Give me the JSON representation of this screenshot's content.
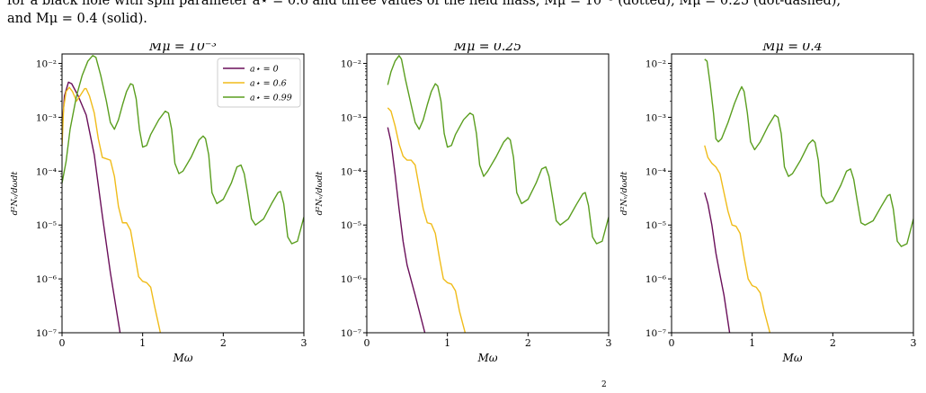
{
  "caption": {
    "line1": "for a black hole with spin parameter a⋆ = 0.6 and three values of the field mass, Mμ = 10⁻³ (dotted), Mμ = 0.25 (dot-dashed),",
    "line2": "and Mμ = 0.4 (solid)."
  },
  "footer_mark": "2",
  "colors": {
    "a0": "#6a0f5a",
    "a06": "#f0bc1a",
    "a099": "#5a9e1f"
  },
  "chart_data": [
    {
      "type": "line",
      "title": "Mμ = 10⁻³",
      "xlabel": "Mω",
      "ylabel": "d²Nᵥ/dωdt",
      "xlim": [
        0,
        3
      ],
      "ylim": [
        1e-07,
        0.015
      ],
      "yscale": "log",
      "xticks": [
        "0",
        "1",
        "2",
        "3"
      ],
      "yticks": [
        "10⁻⁷",
        "10⁻⁶",
        "10⁻⁵",
        "10⁻⁴",
        "10⁻³",
        "10⁻²"
      ],
      "legend": {
        "placement": "top-right",
        "entries": [
          "a⋆ = 0",
          "a⋆ = 0.6",
          "a⋆ = 0.99"
        ]
      },
      "series": [
        {
          "name": "a⋆ = 0",
          "color": "#6a0f5a",
          "points": [
            [
              0.0,
              0.0006
            ],
            [
              0.03,
              0.0025
            ],
            [
              0.08,
              0.0045
            ],
            [
              0.12,
              0.0042
            ],
            [
              0.2,
              0.0025
            ],
            [
              0.3,
              0.0011
            ],
            [
              0.4,
              0.0002
            ],
            [
              0.5,
              1.5e-05
            ],
            [
              0.6,
              1.3e-06
            ],
            [
              0.72,
              1e-07
            ]
          ]
        },
        {
          "name": "a⋆ = 0.6",
          "color": "#f0bc1a",
          "points": [
            [
              0.0,
              0.0003
            ],
            [
              0.02,
              0.0015
            ],
            [
              0.05,
              0.003
            ],
            [
              0.09,
              0.0036
            ],
            [
              0.13,
              0.003
            ],
            [
              0.18,
              0.002
            ],
            [
              0.23,
              0.0026
            ],
            [
              0.28,
              0.0034
            ],
            [
              0.3,
              0.0034
            ],
            [
              0.34,
              0.0025
            ],
            [
              0.4,
              0.0012
            ],
            [
              0.45,
              0.0004
            ],
            [
              0.5,
              0.00018
            ],
            [
              0.55,
              0.00017
            ],
            [
              0.6,
              0.00016
            ],
            [
              0.65,
              8e-05
            ],
            [
              0.7,
              2.2e-05
            ],
            [
              0.75,
              1.1e-05
            ],
            [
              0.8,
              1.1e-05
            ],
            [
              0.85,
              8e-06
            ],
            [
              0.9,
              3e-06
            ],
            [
              0.95,
              1.1e-06
            ],
            [
              1.0,
              9e-07
            ],
            [
              1.05,
              8.5e-07
            ],
            [
              1.1,
              7e-07
            ],
            [
              1.15,
              3e-07
            ],
            [
              1.22,
              1e-07
            ]
          ]
        },
        {
          "name": "a⋆ = 0.99",
          "color": "#5a9e1f",
          "points": [
            [
              0.0,
              6e-05
            ],
            [
              0.05,
              0.00015
            ],
            [
              0.1,
              0.0006
            ],
            [
              0.18,
              0.0025
            ],
            [
              0.25,
              0.006
            ],
            [
              0.32,
              0.011
            ],
            [
              0.38,
              0.014
            ],
            [
              0.42,
              0.013
            ],
            [
              0.48,
              0.006
            ],
            [
              0.55,
              0.002
            ],
            [
              0.6,
              0.0008
            ],
            [
              0.65,
              0.0006
            ],
            [
              0.7,
              0.0009
            ],
            [
              0.75,
              0.0017
            ],
            [
              0.8,
              0.003
            ],
            [
              0.85,
              0.0042
            ],
            [
              0.88,
              0.004
            ],
            [
              0.92,
              0.0022
            ],
            [
              0.96,
              0.0006
            ],
            [
              1.0,
              0.00028
            ],
            [
              1.05,
              0.0003
            ],
            [
              1.1,
              0.00048
            ],
            [
              1.2,
              0.0009
            ],
            [
              1.28,
              0.0013
            ],
            [
              1.32,
              0.0012
            ],
            [
              1.36,
              0.0006
            ],
            [
              1.4,
              0.00014
            ],
            [
              1.45,
              9e-05
            ],
            [
              1.5,
              0.0001
            ],
            [
              1.6,
              0.00018
            ],
            [
              1.7,
              0.00038
            ],
            [
              1.75,
              0.00045
            ],
            [
              1.78,
              0.0004
            ],
            [
              1.82,
              0.0002
            ],
            [
              1.86,
              4e-05
            ],
            [
              1.92,
              2.5e-05
            ],
            [
              2.0,
              3e-05
            ],
            [
              2.1,
              6e-05
            ],
            [
              2.17,
              0.00012
            ],
            [
              2.22,
              0.00013
            ],
            [
              2.26,
              9e-05
            ],
            [
              2.3,
              4e-05
            ],
            [
              2.35,
              1.3e-05
            ],
            [
              2.4,
              1e-05
            ],
            [
              2.5,
              1.3e-05
            ],
            [
              2.6,
              2.5e-05
            ],
            [
              2.68,
              4e-05
            ],
            [
              2.71,
              4.2e-05
            ],
            [
              2.75,
              2.5e-05
            ],
            [
              2.8,
              6e-06
            ],
            [
              2.85,
              4.5e-06
            ],
            [
              2.92,
              5e-06
            ],
            [
              3.0,
              1.4e-05
            ]
          ]
        }
      ]
    },
    {
      "type": "line",
      "title": "Mμ = 0.25",
      "xlabel": "Mω",
      "ylabel": "d²Nᵥ/dωdt",
      "xlim": [
        0,
        3
      ],
      "ylim": [
        1e-07,
        0.015
      ],
      "yscale": "log",
      "xticks": [
        "0",
        "1",
        "2",
        "3"
      ],
      "yticks": [
        "10⁻⁷",
        "10⁻⁶",
        "10⁻⁵",
        "10⁻⁴",
        "10⁻³",
        "10⁻²"
      ],
      "series": [
        {
          "color": "#6a0f5a",
          "points": [
            [
              0.26,
              0.00065
            ],
            [
              0.3,
              0.00035
            ],
            [
              0.35,
              9e-05
            ],
            [
              0.4,
              2e-05
            ],
            [
              0.45,
              5e-06
            ],
            [
              0.5,
              1.8e-06
            ],
            [
              0.6,
              5e-07
            ],
            [
              0.72,
              1e-07
            ]
          ]
        },
        {
          "color": "#f0bc1a",
          "points": [
            [
              0.26,
              0.0015
            ],
            [
              0.3,
              0.0013
            ],
            [
              0.35,
              0.0007
            ],
            [
              0.4,
              0.00032
            ],
            [
              0.45,
              0.00019
            ],
            [
              0.5,
              0.00016
            ],
            [
              0.55,
              0.00016
            ],
            [
              0.6,
              0.00013
            ],
            [
              0.65,
              5e-05
            ],
            [
              0.7,
              2e-05
            ],
            [
              0.75,
              1.1e-05
            ],
            [
              0.8,
              1.05e-05
            ],
            [
              0.85,
              7e-06
            ],
            [
              0.9,
              2.5e-06
            ],
            [
              0.95,
              1e-06
            ],
            [
              1.0,
              8.5e-07
            ],
            [
              1.05,
              8e-07
            ],
            [
              1.1,
              6e-07
            ],
            [
              1.15,
              2.5e-07
            ],
            [
              1.22,
              1e-07
            ]
          ]
        },
        {
          "color": "#5a9e1f",
          "points": [
            [
              0.26,
              0.004
            ],
            [
              0.3,
              0.007
            ],
            [
              0.35,
              0.011
            ],
            [
              0.4,
              0.014
            ],
            [
              0.43,
              0.012
            ],
            [
              0.48,
              0.005
            ],
            [
              0.55,
              0.0017
            ],
            [
              0.6,
              0.0008
            ],
            [
              0.65,
              0.0006
            ],
            [
              0.7,
              0.0009
            ],
            [
              0.75,
              0.0017
            ],
            [
              0.8,
              0.003
            ],
            [
              0.85,
              0.0042
            ],
            [
              0.88,
              0.0038
            ],
            [
              0.92,
              0.002
            ],
            [
              0.96,
              0.0005
            ],
            [
              1.0,
              0.00028
            ],
            [
              1.05,
              0.0003
            ],
            [
              1.1,
              0.00048
            ],
            [
              1.2,
              0.0009
            ],
            [
              1.28,
              0.0012
            ],
            [
              1.32,
              0.0011
            ],
            [
              1.36,
              0.0005
            ],
            [
              1.4,
              0.00013
            ],
            [
              1.45,
              8e-05
            ],
            [
              1.5,
              0.0001
            ],
            [
              1.6,
              0.00018
            ],
            [
              1.7,
              0.00035
            ],
            [
              1.75,
              0.00042
            ],
            [
              1.78,
              0.00038
            ],
            [
              1.82,
              0.00018
            ],
            [
              1.86,
              4e-05
            ],
            [
              1.92,
              2.5e-05
            ],
            [
              2.0,
              3e-05
            ],
            [
              2.1,
              6e-05
            ],
            [
              2.17,
              0.00011
            ],
            [
              2.22,
              0.00012
            ],
            [
              2.26,
              8e-05
            ],
            [
              2.3,
              3.5e-05
            ],
            [
              2.35,
              1.2e-05
            ],
            [
              2.4,
              1e-05
            ],
            [
              2.5,
              1.3e-05
            ],
            [
              2.6,
              2.4e-05
            ],
            [
              2.68,
              3.8e-05
            ],
            [
              2.71,
              4e-05
            ],
            [
              2.75,
              2.3e-05
            ],
            [
              2.8,
              6e-06
            ],
            [
              2.85,
              4.5e-06
            ],
            [
              2.92,
              5e-06
            ],
            [
              3.0,
              1.4e-05
            ]
          ]
        }
      ]
    },
    {
      "type": "line",
      "title": "Mμ = 0.4",
      "xlabel": "Mω",
      "ylabel": "d²Nᵥ/dωdt",
      "xlim": [
        0,
        3
      ],
      "ylim": [
        1e-07,
        0.015
      ],
      "yscale": "log",
      "xticks": [
        "0",
        "1",
        "2",
        "3"
      ],
      "yticks": [
        "10⁻⁷",
        "10⁻⁶",
        "10⁻⁵",
        "10⁻⁴",
        "10⁻³",
        "10⁻²"
      ],
      "series": [
        {
          "color": "#6a0f5a",
          "points": [
            [
              0.41,
              4e-05
            ],
            [
              0.45,
              2.5e-05
            ],
            [
              0.5,
              1e-05
            ],
            [
              0.55,
              3e-06
            ],
            [
              0.6,
              1.2e-06
            ],
            [
              0.65,
              5e-07
            ],
            [
              0.72,
              1e-07
            ]
          ]
        },
        {
          "color": "#f0bc1a",
          "points": [
            [
              0.41,
              0.0003
            ],
            [
              0.45,
              0.00018
            ],
            [
              0.5,
              0.00014
            ],
            [
              0.55,
              0.00012
            ],
            [
              0.6,
              9e-05
            ],
            [
              0.65,
              4e-05
            ],
            [
              0.7,
              1.8e-05
            ],
            [
              0.75,
              1e-05
            ],
            [
              0.8,
              9.5e-06
            ],
            [
              0.85,
              7e-06
            ],
            [
              0.9,
              2.5e-06
            ],
            [
              0.95,
              1e-06
            ],
            [
              1.0,
              7.5e-07
            ],
            [
              1.05,
              7e-07
            ],
            [
              1.1,
              5.5e-07
            ],
            [
              1.15,
              2.5e-07
            ],
            [
              1.22,
              1e-07
            ]
          ]
        },
        {
          "color": "#5a9e1f",
          "points": [
            [
              0.41,
              0.012
            ],
            [
              0.44,
              0.011
            ],
            [
              0.48,
              0.004
            ],
            [
              0.52,
              0.0012
            ],
            [
              0.55,
              0.0004
            ],
            [
              0.58,
              0.00035
            ],
            [
              0.62,
              0.0004
            ],
            [
              0.7,
              0.0008
            ],
            [
              0.78,
              0.0018
            ],
            [
              0.84,
              0.003
            ],
            [
              0.87,
              0.0037
            ],
            [
              0.9,
              0.003
            ],
            [
              0.94,
              0.0012
            ],
            [
              0.98,
              0.00035
            ],
            [
              1.03,
              0.00025
            ],
            [
              1.1,
              0.00035
            ],
            [
              1.2,
              0.0007
            ],
            [
              1.28,
              0.0011
            ],
            [
              1.32,
              0.001
            ],
            [
              1.36,
              0.0005
            ],
            [
              1.4,
              0.00012
            ],
            [
              1.45,
              8e-05
            ],
            [
              1.5,
              9e-05
            ],
            [
              1.6,
              0.00016
            ],
            [
              1.7,
              0.00032
            ],
            [
              1.75,
              0.00038
            ],
            [
              1.78,
              0.00034
            ],
            [
              1.82,
              0.00016
            ],
            [
              1.86,
              3.5e-05
            ],
            [
              1.92,
              2.5e-05
            ],
            [
              2.0,
              2.8e-05
            ],
            [
              2.1,
              5.5e-05
            ],
            [
              2.17,
              0.0001
            ],
            [
              2.22,
              0.00011
            ],
            [
              2.26,
              7e-05
            ],
            [
              2.3,
              3e-05
            ],
            [
              2.35,
              1.1e-05
            ],
            [
              2.4,
              1e-05
            ],
            [
              2.5,
              1.2e-05
            ],
            [
              2.6,
              2.2e-05
            ],
            [
              2.68,
              3.5e-05
            ],
            [
              2.71,
              3.7e-05
            ],
            [
              2.75,
              2e-05
            ],
            [
              2.8,
              5e-06
            ],
            [
              2.85,
              4e-06
            ],
            [
              2.92,
              4.5e-06
            ],
            [
              3.0,
              1.3e-05
            ]
          ]
        }
      ]
    }
  ]
}
